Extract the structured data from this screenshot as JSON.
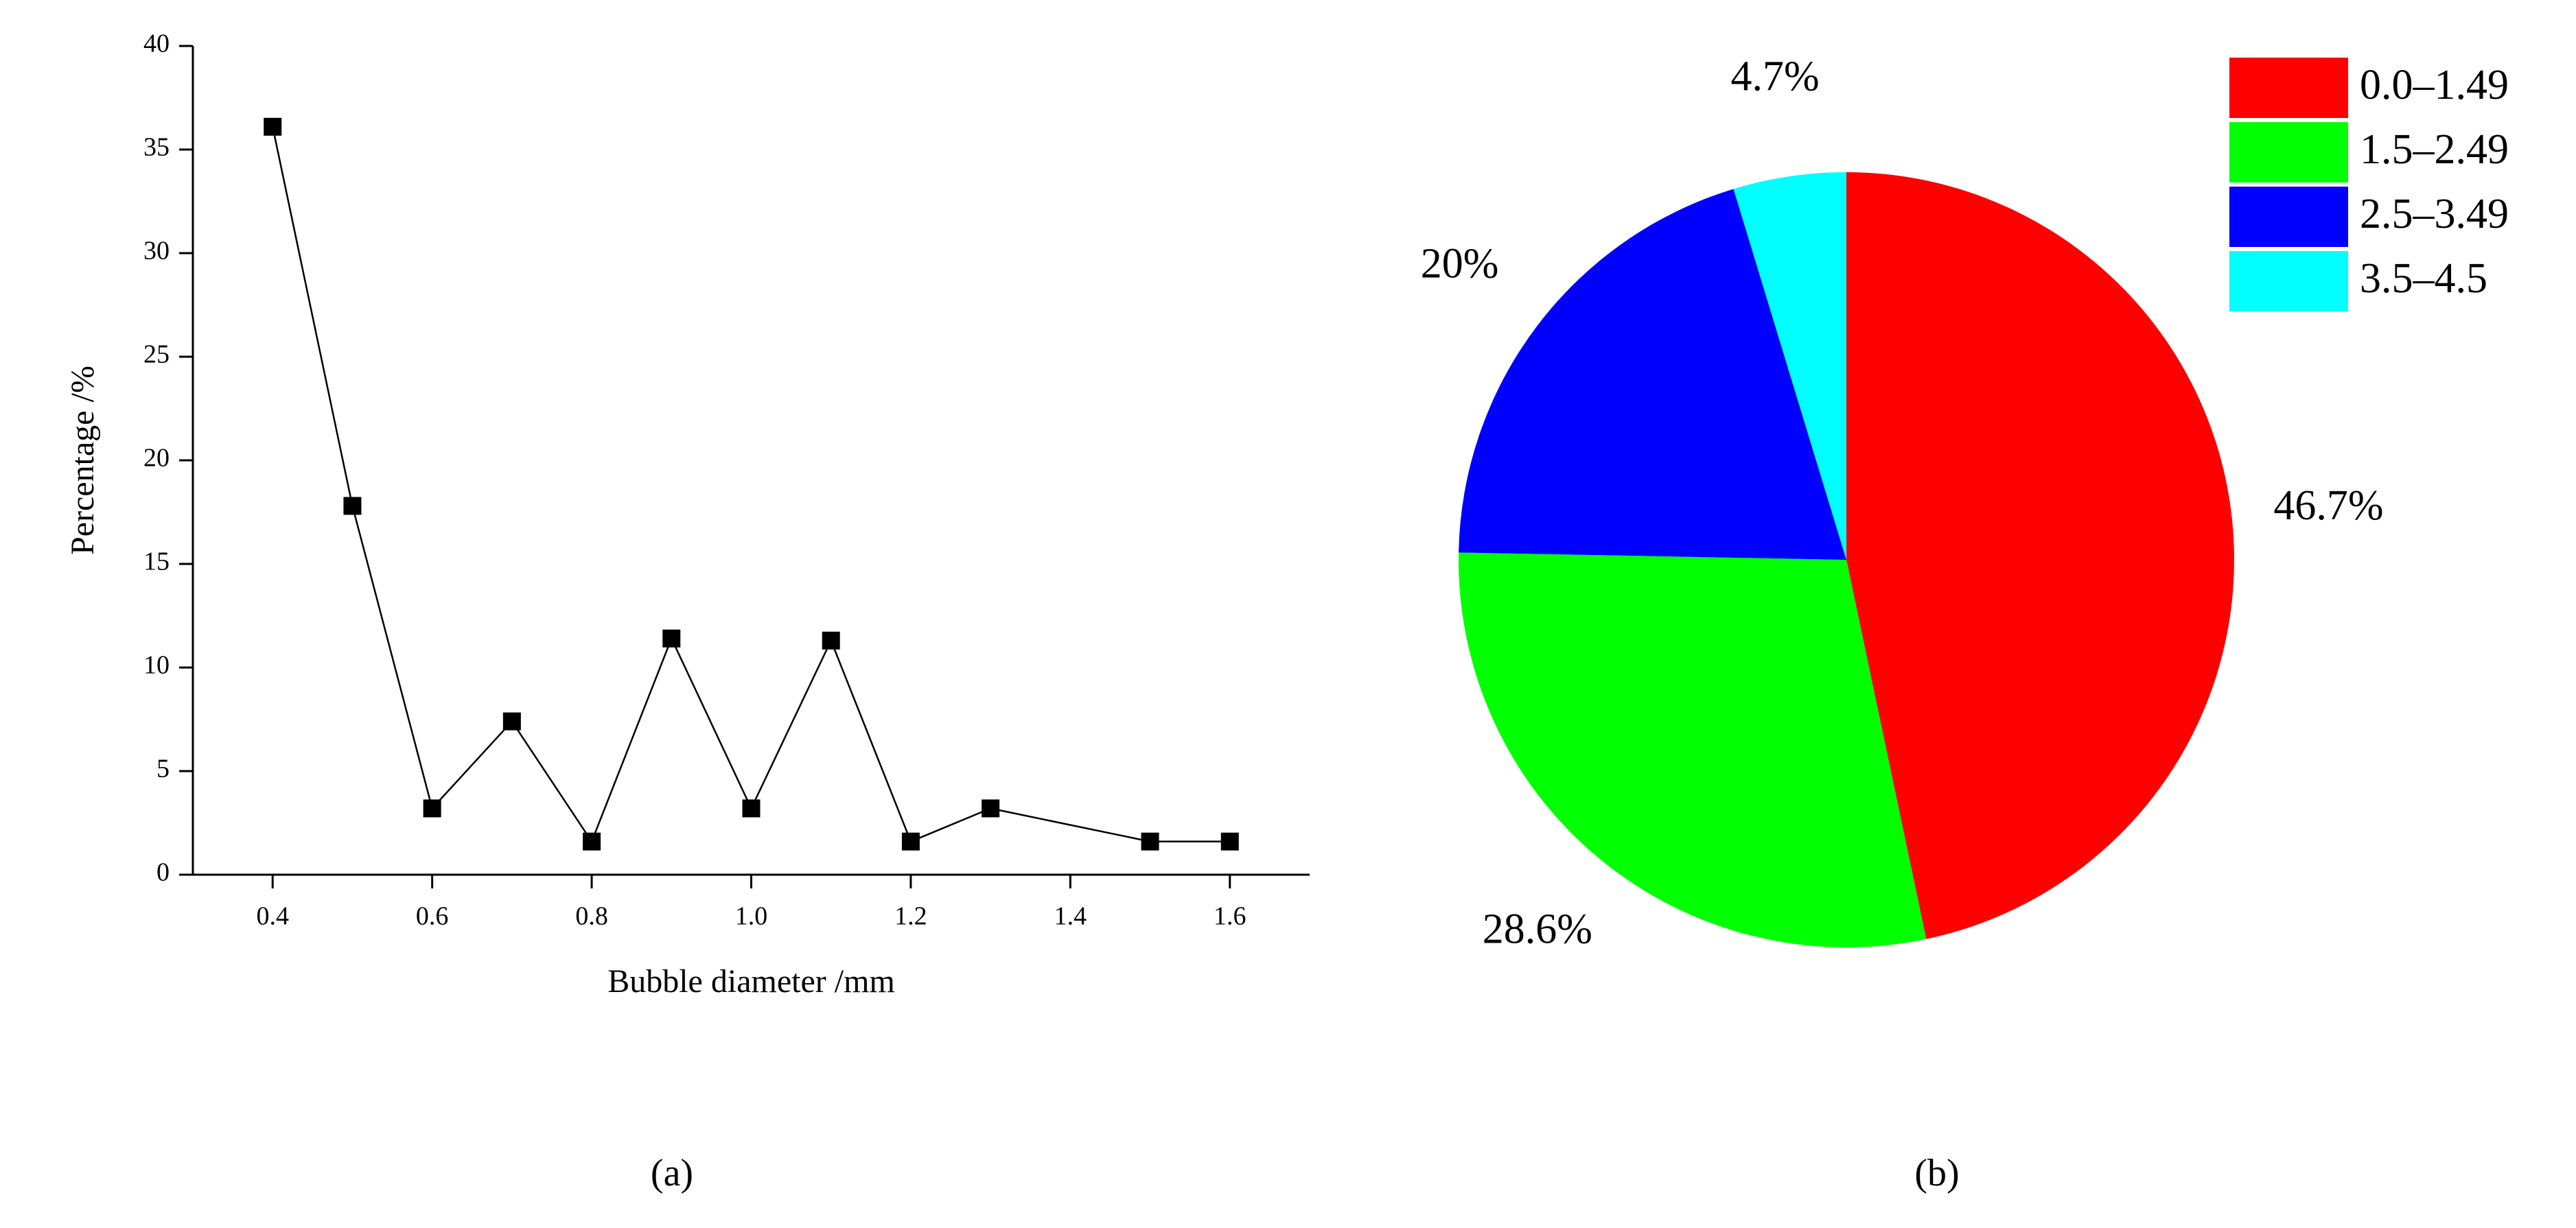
{
  "chart_data": [
    {
      "type": "line",
      "caption": "(a)",
      "xlabel": "Bubble diameter /mm",
      "ylabel": "Percentage /%",
      "x": [
        0.4,
        0.5,
        0.6,
        0.7,
        0.8,
        0.9,
        1.0,
        1.1,
        1.2,
        1.3,
        1.5,
        1.6
      ],
      "values": [
        36.1,
        17.8,
        3.2,
        7.4,
        1.6,
        11.4,
        3.2,
        11.3,
        1.6,
        3.2,
        1.6,
        1.6
      ],
      "color": "#000000",
      "xlim": [
        0.3,
        1.7
      ],
      "xticks": [
        0.4,
        0.6,
        0.8,
        {
          "value": 1,
          "label": "1.0"
        },
        1.2,
        1.4,
        1.6
      ],
      "ylim": [
        0,
        40
      ],
      "yticks": [
        0,
        5,
        10,
        15,
        20,
        25,
        30,
        35,
        40
      ]
    },
    {
      "type": "pie",
      "caption": "(b)",
      "categories": [
        "0.0–1.49",
        "1.5–2.49",
        "2.5–3.49",
        "3.5–4.5"
      ],
      "values": [
        46.7,
        28.6,
        20,
        4.7
      ],
      "value_labels": [
        "46.7%",
        "28.6%",
        "20%",
        "4.7%"
      ],
      "colors": [
        "#ff0000",
        "#00ff00",
        "#0000ff",
        "#00ffff"
      ],
      "legend": "top-right"
    }
  ]
}
